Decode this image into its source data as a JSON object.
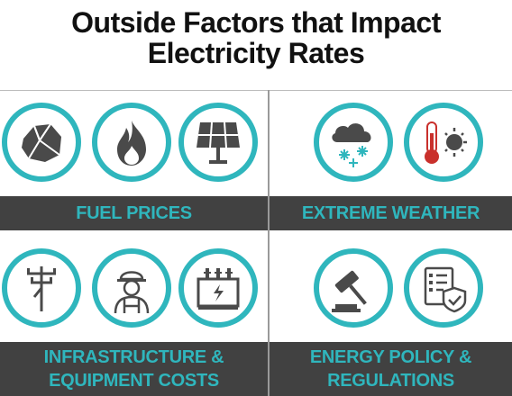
{
  "title": {
    "line1": "Outside Factors that Impact",
    "line2": "Electricity Rates"
  },
  "colors": {
    "accent": "#2fb6bd",
    "bar": "#414141",
    "icon": "#4a4a4a",
    "thermo_red": "#c9302c"
  },
  "quadrants": [
    {
      "label_lines": [
        "FUEL PRICES"
      ],
      "icons": [
        "coal-icon",
        "flame-icon",
        "solar-panel-icon"
      ]
    },
    {
      "label_lines": [
        "EXTREME WEATHER"
      ],
      "icons": [
        "snow-cloud-icon",
        "thermometer-sun-icon"
      ]
    },
    {
      "label_lines": [
        "INFRASTRUCTURE &",
        "EQUIPMENT COSTS"
      ],
      "icons": [
        "power-pole-icon",
        "worker-icon",
        "transformer-icon"
      ]
    },
    {
      "label_lines": [
        "ENERGY POLICY &",
        "REGULATIONS"
      ],
      "icons": [
        "gavel-icon",
        "checklist-shield-icon"
      ]
    }
  ]
}
